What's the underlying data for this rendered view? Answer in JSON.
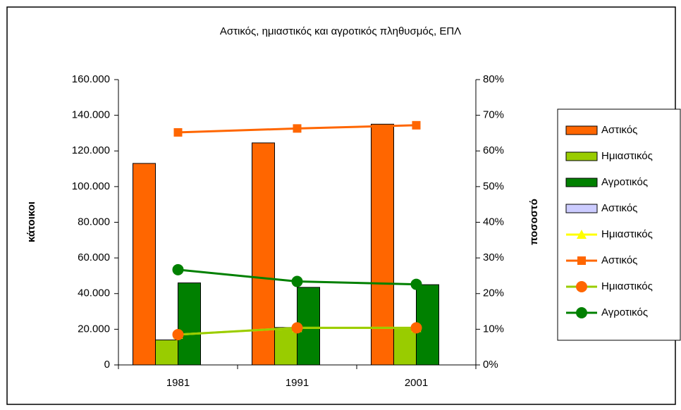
{
  "chart_data": {
    "type": "bar_line_combo",
    "title": "Αστικός, ημιαστικός και αγροτικός πληθυσμός, ΕΠΛ",
    "y_label": "κάτοικοι",
    "y2_label": "ποσοστό",
    "categories": [
      "1981",
      "1991",
      "2001"
    ],
    "ylim": [
      0,
      160000
    ],
    "yticks": [
      {
        "value": 0,
        "label": "0"
      },
      {
        "value": 20000,
        "label": "20.000"
      },
      {
        "value": 40000,
        "label": "40.000"
      },
      {
        "value": 60000,
        "label": "60.000"
      },
      {
        "value": 80000,
        "label": "80.000"
      },
      {
        "value": 100000,
        "label": "100.000"
      },
      {
        "value": 120000,
        "label": "120.000"
      },
      {
        "value": 140000,
        "label": "140.000"
      },
      {
        "value": 160000,
        "label": "160.000"
      }
    ],
    "y2lim": [
      0,
      80
    ],
    "y2ticks": [
      {
        "value": 0,
        "label": "0%"
      },
      {
        "value": 10,
        "label": "10%"
      },
      {
        "value": 20,
        "label": "20%"
      },
      {
        "value": 30,
        "label": "30%"
      },
      {
        "value": 40,
        "label": "40%"
      },
      {
        "value": 50,
        "label": "50%"
      },
      {
        "value": 60,
        "label": "60%"
      },
      {
        "value": 70,
        "label": "70%"
      },
      {
        "value": 80,
        "label": "80%"
      }
    ],
    "legend": "right",
    "series": [
      {
        "name": "Αστικός",
        "type": "bar",
        "color": "#ff6600",
        "values": [
          113000,
          124500,
          135000
        ]
      },
      {
        "name": "Ημιαστικός",
        "type": "bar",
        "color": "#99cc00",
        "values": [
          14000,
          21000,
          21000
        ]
      },
      {
        "name": "Αγροτικός",
        "type": "bar",
        "color": "#008000",
        "values": [
          46000,
          43500,
          45000
        ]
      },
      {
        "name": "Αστικός",
        "type": "bar",
        "color": "#ccccff",
        "values": [
          0,
          0,
          0
        ]
      },
      {
        "name": "Ημιαστικός",
        "type": "line",
        "axis": "y2",
        "color": "#ffff00",
        "marker": "triangle",
        "marker_color": "#ffff00",
        "values": [
          8.5,
          10.4,
          10.4
        ]
      },
      {
        "name": "Αστικός",
        "type": "line",
        "axis": "y2",
        "color": "#ff6600",
        "marker": "square",
        "marker_color": "#ff6600",
        "values": [
          65.2,
          66.3,
          67.2
        ]
      },
      {
        "name": "Ημιαστικός",
        "type": "line",
        "axis": "y2",
        "color": "#99cc00",
        "marker": "circle",
        "marker_color": "#ff6600",
        "values": [
          8.5,
          10.4,
          10.4
        ]
      },
      {
        "name": "Αγροτικός",
        "type": "line",
        "axis": "y2",
        "color": "#008000",
        "marker": "circle",
        "marker_color": "#008000",
        "values": [
          26.7,
          23.4,
          22.6
        ]
      }
    ]
  }
}
